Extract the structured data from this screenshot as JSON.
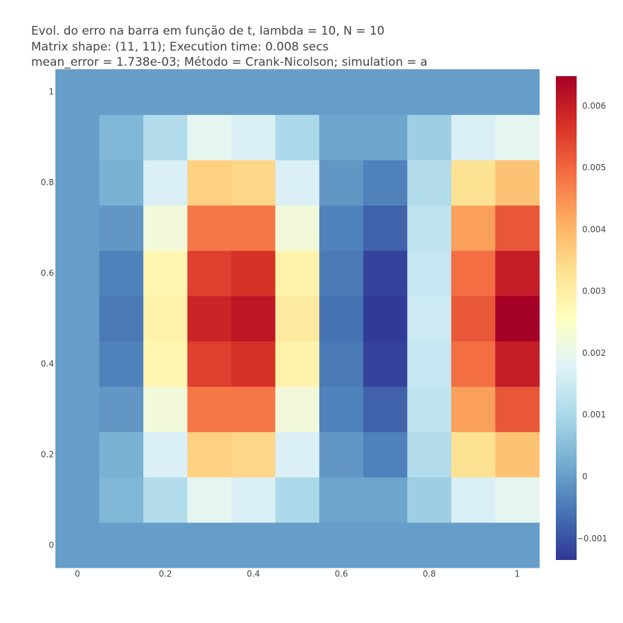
{
  "title_lines": [
    "Evol. do erro na barra em função de t, lambda = 10, N = 10",
    "Matrix shape: (11, 11); Execution time: 0.008 secs",
    "mean_error = 1.738e-03; Método = Crank-Nicolson; simulation = a"
  ],
  "chart_data": {
    "type": "heatmap",
    "x": [
      0,
      0.1,
      0.2,
      0.3,
      0.4,
      0.5,
      0.6,
      0.7,
      0.8,
      0.9,
      1
    ],
    "y": [
      0,
      0.1,
      0.2,
      0.3,
      0.4,
      0.5,
      0.6,
      0.7,
      0.8,
      0.9,
      1
    ],
    "x_ticks": [
      0,
      0.2,
      0.4,
      0.6,
      0.8,
      1
    ],
    "x_tick_labels": [
      "0",
      "0.2",
      "0.4",
      "0.6",
      "0.8",
      "1"
    ],
    "y_ticks": [
      0,
      0.2,
      0.4,
      0.6,
      0.8,
      1
    ],
    "y_tick_labels": [
      "0",
      "0.2",
      "0.4",
      "0.6",
      "0.8",
      "1"
    ],
    "z": [
      [
        0,
        0,
        0,
        0,
        0,
        0,
        0,
        0,
        0,
        0,
        0
      ],
      [
        0,
        0.0004,
        0.0011,
        0.0019,
        0.0017,
        0.001,
        0.0001,
        0.0001,
        0.0008,
        0.0017,
        0.0019
      ],
      [
        0,
        0.0003,
        0.0017,
        0.0036,
        0.0035,
        0.0017,
        -0.0001,
        -0.0004,
        0.0011,
        0.0033,
        0.0038
      ],
      [
        0,
        -0.0001,
        0.0022,
        0.0048,
        0.0048,
        0.0022,
        -0.0004,
        -0.0008,
        0.0013,
        0.0043,
        0.0052
      ],
      [
        0,
        -0.0004,
        0.0028,
        0.0055,
        0.0057,
        0.0029,
        -0.0005,
        -0.0012,
        0.0014,
        0.0049,
        0.006
      ],
      [
        0,
        -0.0005,
        0.0029,
        0.0059,
        0.0061,
        0.0031,
        -0.0006,
        -0.0013,
        0.0015,
        0.0052,
        0.0065
      ],
      [
        0,
        -0.0004,
        0.0028,
        0.0055,
        0.0057,
        0.0029,
        -0.0005,
        -0.0012,
        0.0014,
        0.0049,
        0.006
      ],
      [
        0,
        -0.0001,
        0.0022,
        0.0048,
        0.0048,
        0.0022,
        -0.0004,
        -0.0008,
        0.0013,
        0.0043,
        0.0052
      ],
      [
        0,
        0.0003,
        0.0017,
        0.0036,
        0.0035,
        0.0017,
        -0.0001,
        -0.0004,
        0.0011,
        0.0033,
        0.0038
      ],
      [
        0,
        0.0004,
        0.0011,
        0.0019,
        0.0017,
        0.001,
        0.0001,
        0.0001,
        0.0008,
        0.0017,
        0.0019
      ],
      [
        0,
        0,
        0,
        0,
        0,
        0,
        0,
        0,
        0,
        0,
        0
      ]
    ],
    "zmin": -0.00135,
    "zmax": 0.00648,
    "colorscale": "RdYlBu_r",
    "colorscale_stops": [
      [
        0.0,
        "#313695"
      ],
      [
        0.1,
        "#4575b4"
      ],
      [
        0.2,
        "#74add1"
      ],
      [
        0.3,
        "#abd9e9"
      ],
      [
        0.4,
        "#e0f3f8"
      ],
      [
        0.5,
        "#ffffbf"
      ],
      [
        0.6,
        "#fee090"
      ],
      [
        0.7,
        "#fdae61"
      ],
      [
        0.8,
        "#f46d43"
      ],
      [
        0.9,
        "#d73027"
      ],
      [
        1.0,
        "#a50026"
      ]
    ],
    "colorbar_ticks": [
      -0.001,
      0,
      0.001,
      0.002,
      0.003,
      0.004,
      0.005,
      0.006
    ],
    "colorbar_tick_labels": [
      "−0.001",
      "0",
      "0.001",
      "0.002",
      "0.003",
      "0.004",
      "0.005",
      "0.006"
    ]
  }
}
